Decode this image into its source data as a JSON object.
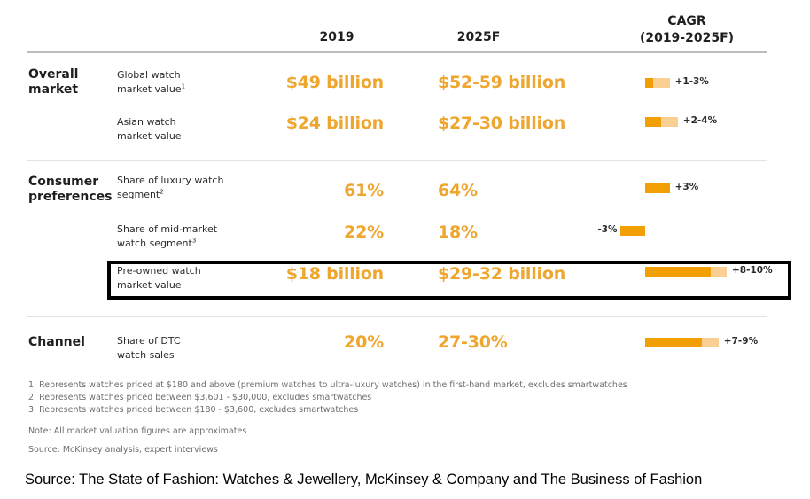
{
  "chart_data": {
    "type": "table",
    "title": "",
    "columns": [
      "2019",
      "2025F",
      "CAGR (2019-2025F)"
    ],
    "cagr_header": [
      "CAGR",
      "(2019-2025F)"
    ],
    "groups": [
      {
        "section": [
          "Overall",
          "market"
        ],
        "rows": [
          {
            "metric": [
              "Global watch",
              "market value"
            ],
            "footnote": "1",
            "v2019": "$49 billion",
            "v2025": "$52-59 billion",
            "cagr_label": "+1-3%",
            "cagr_low": 1,
            "cagr_high": 3,
            "highlighted": false
          },
          {
            "metric": [
              "Asian watch",
              "market value"
            ],
            "footnote": "",
            "v2019": "$24 billion",
            "v2025": "$27-30 billion",
            "cagr_label": "+2-4%",
            "cagr_low": 2,
            "cagr_high": 4,
            "highlighted": false
          }
        ]
      },
      {
        "section": [
          "Consumer",
          "preferences"
        ],
        "rows": [
          {
            "metric": [
              "Share of luxury watch",
              "segment"
            ],
            "footnote": "2",
            "v2019": "61%",
            "v2025": "64%",
            "cagr_label": "+3%",
            "cagr_low": 3,
            "cagr_high": 3,
            "highlighted": false
          },
          {
            "metric": [
              "Share of mid-market",
              "watch segment"
            ],
            "footnote": "3",
            "v2019": "22%",
            "v2025": "18%",
            "cagr_label": "-3%",
            "cagr_low": -3,
            "cagr_high": -3,
            "highlighted": false
          },
          {
            "metric": [
              "Pre-owned watch",
              "market value"
            ],
            "footnote": "",
            "v2019": "$18 billion",
            "v2025": "$29-32 billion",
            "cagr_label": "+8-10%",
            "cagr_low": 8,
            "cagr_high": 10,
            "highlighted": true
          }
        ]
      },
      {
        "section": [
          "Channel",
          ""
        ],
        "rows": [
          {
            "metric": [
              "Share of DTC",
              "watch sales"
            ],
            "footnote": "",
            "v2019": "20%",
            "v2025": "27-30%",
            "cagr_label": "+7-9%",
            "cagr_low": 7,
            "cagr_high": 9,
            "highlighted": false
          }
        ]
      }
    ]
  },
  "colors": {
    "value_text": "#efa62e",
    "bar_low": "#f29f05",
    "bar_range": "#f9cf94",
    "highlight_border": "#000000"
  },
  "footnotes": [
    "1. Represents watches priced at $180 and above (premium watches to ultra-luxury watches) in the first-hand market, excludes smartwatches",
    "2. Represents watches priced between $3,601 - $30,000, excludes smartwatches",
    "3. Represents watches priced between $180 - $3,600, excludes smartwatches"
  ],
  "note": "Note: All market valuation figures are approximates",
  "inner_source": "Source: McKinsey analysis, expert interviews",
  "caption": "Source: The State of Fashion: Watches & Jewellery, McKinsey & Company and The Business of Fashion"
}
